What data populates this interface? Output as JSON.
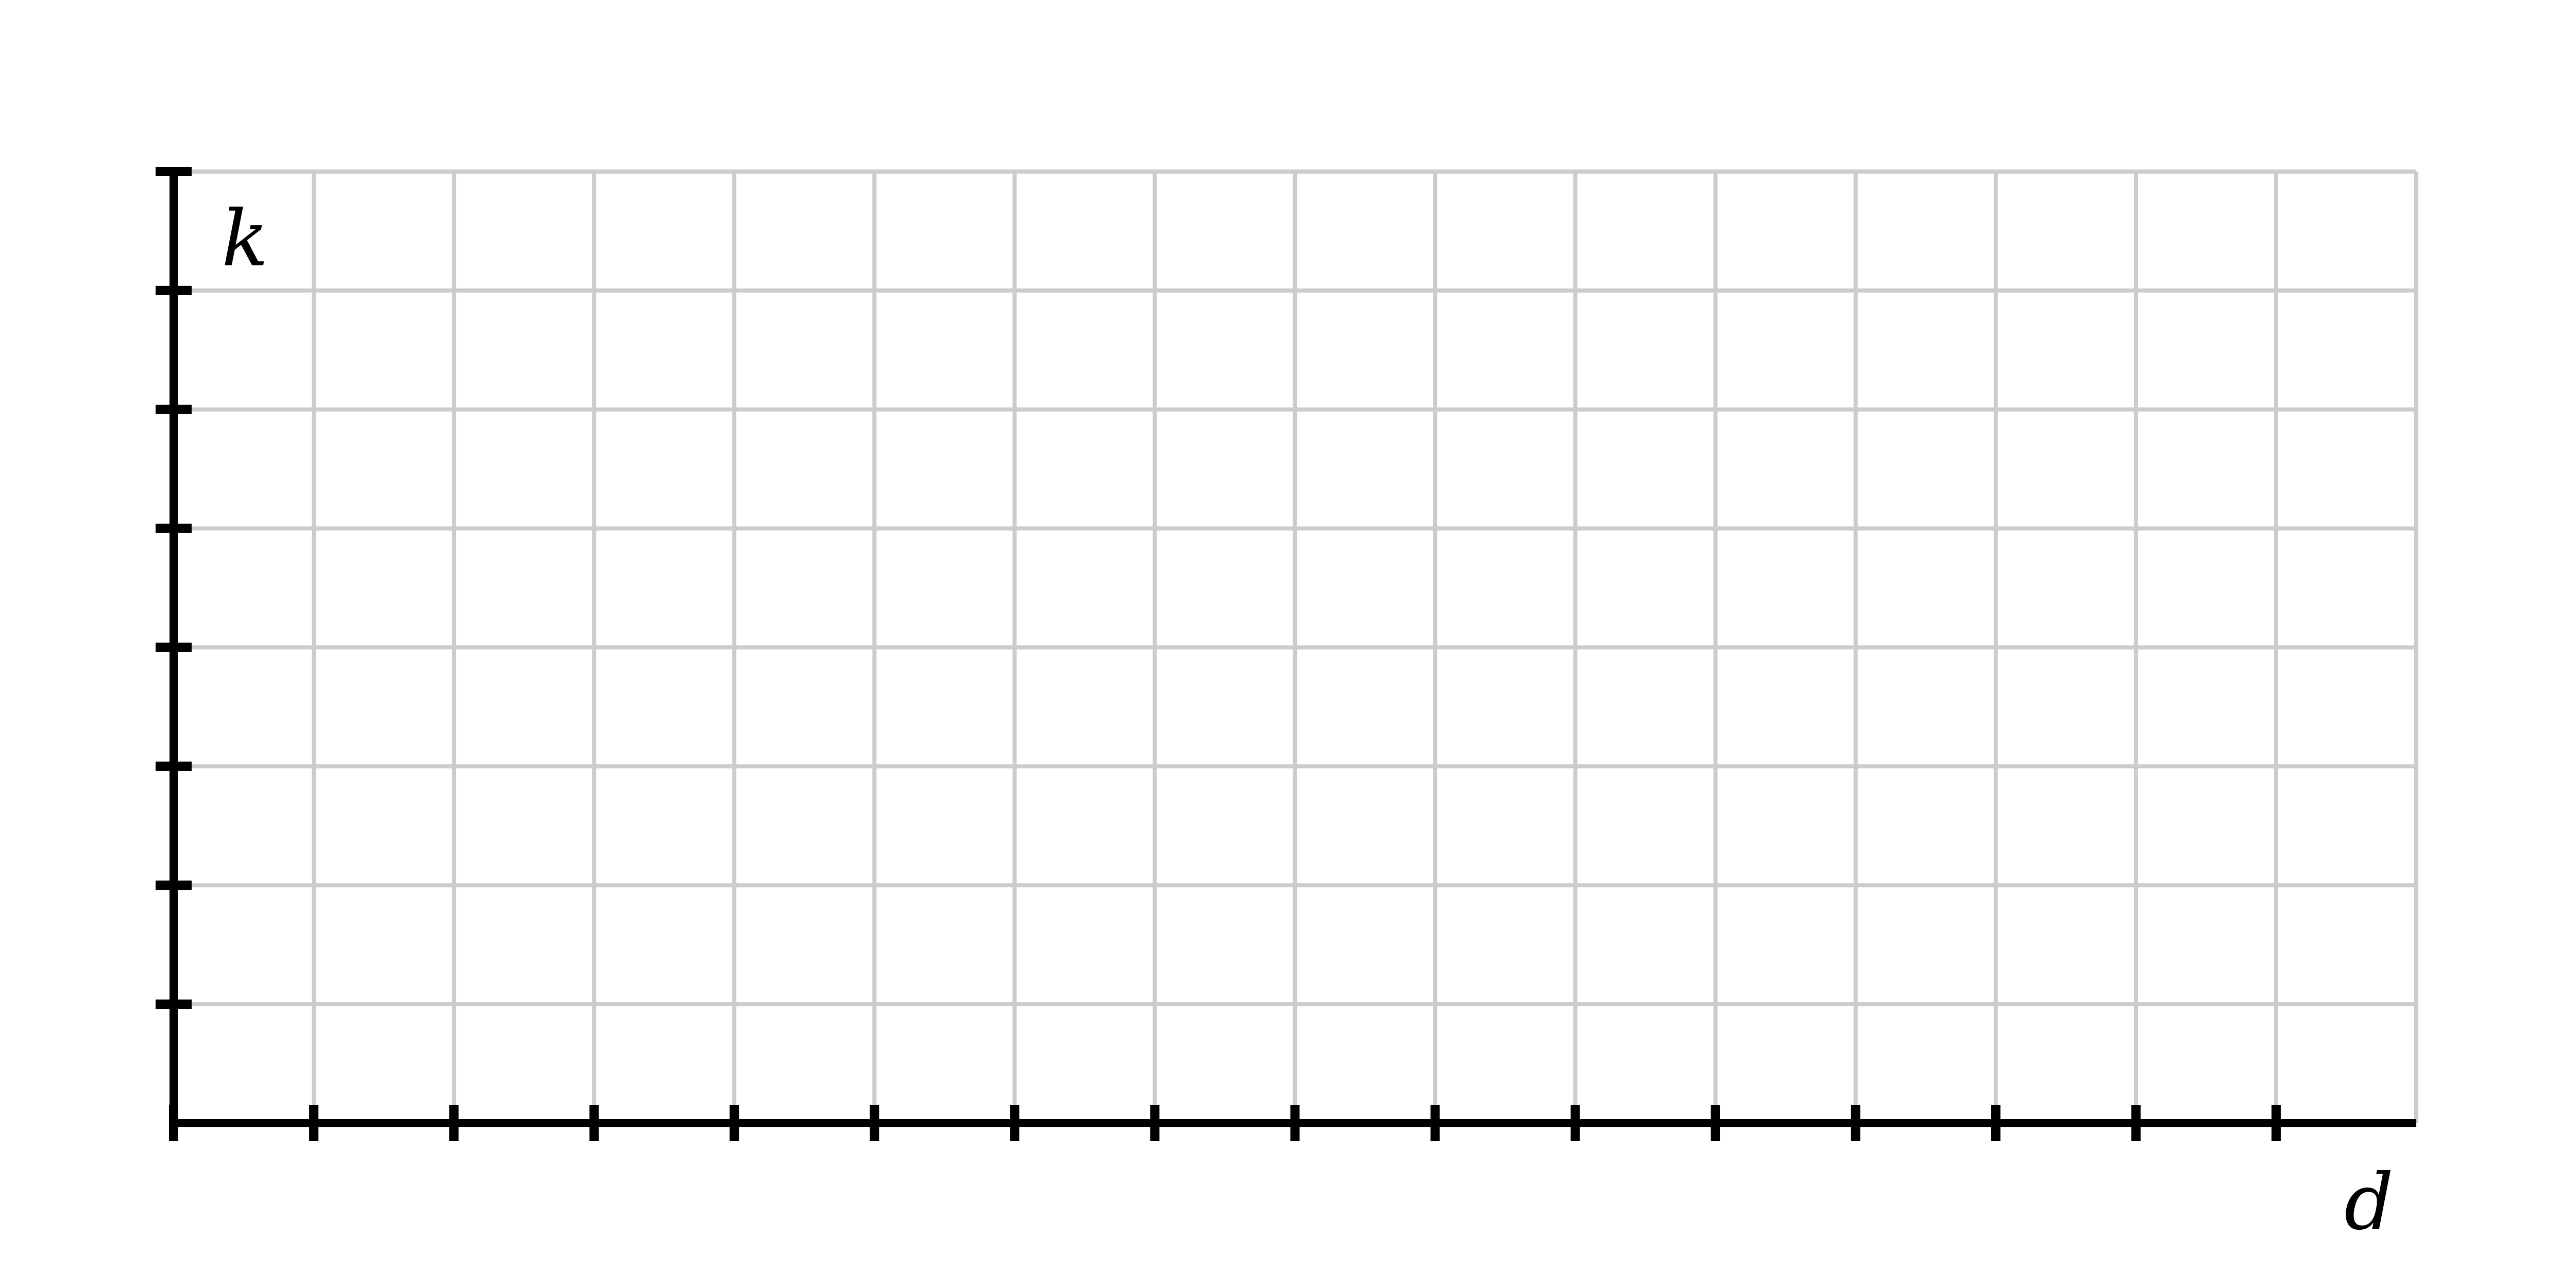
{
  "chart_data": {
    "type": "scatter",
    "title": "",
    "xlabel": "d",
    "ylabel": "k",
    "x_ticks": 16,
    "y_ticks": 8,
    "grid": true,
    "series": [],
    "colors": {
      "axis": "#000000",
      "grid": "#cccccc",
      "background": "#ffffff"
    }
  }
}
